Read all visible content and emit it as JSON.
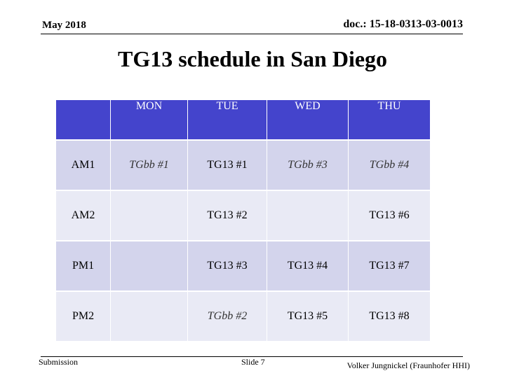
{
  "header": {
    "date": "May 2018",
    "doc_id": "doc.: 15-18-0313-03-0013"
  },
  "title": "TG13 schedule in San Diego",
  "schedule": {
    "columns": [
      "",
      "MON",
      "TUE",
      "WED",
      "THU"
    ],
    "rows": [
      {
        "slot": "AM1",
        "mon": "TGbb #1",
        "tue": "TG13 #1",
        "wed": "TGbb #3",
        "thu": "TGbb #4"
      },
      {
        "slot": "AM2",
        "mon": "",
        "tue": "TG13 #2",
        "wed": "",
        "thu": "TG13 #6"
      },
      {
        "slot": "PM1",
        "mon": "",
        "tue": "TG13 #3",
        "wed": "TG13 #4",
        "thu": "TG13 #7"
      },
      {
        "slot": "PM2",
        "mon": "",
        "tue": "TGbb #2",
        "wed": "TG13 #5",
        "thu": "TG13 #8"
      }
    ]
  },
  "footer": {
    "left": "Submission",
    "center": "Slide 7",
    "right": "Volker Jungnickel (Fraunhofer HHI)"
  }
}
